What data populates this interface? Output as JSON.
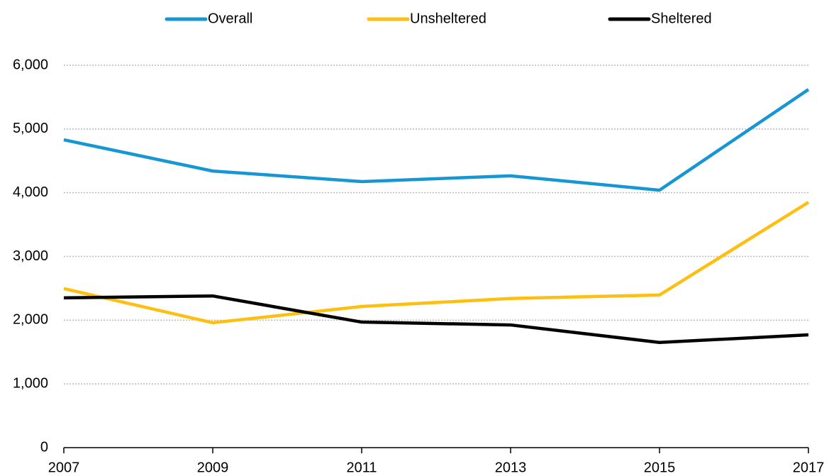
{
  "chart_data": {
    "type": "line",
    "x": [
      2007,
      2009,
      2011,
      2013,
      2015,
      2017
    ],
    "series": [
      {
        "name": "Overall",
        "color": "#1696d2",
        "values": [
          4830,
          4340,
          4175,
          4265,
          4040,
          5620
        ]
      },
      {
        "name": "Unsheltered",
        "color": "#fdbf11",
        "values": [
          2495,
          1960,
          2215,
          2340,
          2395,
          3850
        ]
      },
      {
        "name": "Sheltered",
        "color": "#000000",
        "values": [
          2350,
          2380,
          1970,
          1925,
          1650,
          1770
        ]
      }
    ],
    "xlim": [
      2007,
      2017
    ],
    "xticks": [
      2007,
      2009,
      2011,
      2013,
      2015,
      2017
    ],
    "ylim": [
      0,
      6000
    ],
    "yticks": [
      0,
      {
        "value": 1000,
        "label": "1,000"
      },
      {
        "value": 2000,
        "label": "2,000"
      },
      {
        "value": 3000,
        "label": "3,000"
      },
      {
        "value": 4000,
        "label": "4,000"
      },
      {
        "value": 5000,
        "label": "5,000"
      },
      {
        "value": 6000,
        "label": "6,000"
      }
    ],
    "grid": true,
    "legend": "top"
  }
}
